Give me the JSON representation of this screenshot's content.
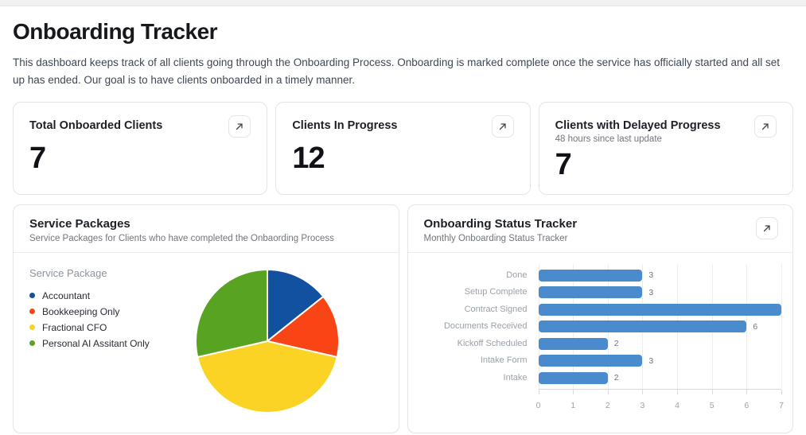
{
  "header": {
    "title": "Onboarding Tracker",
    "description": "This dashboard keeps track of all clients going through the Onboarding Process. Onboarding is marked complete once the service has officially started and all set up has ended. Our goal is to have clients onboarded in a timely manner."
  },
  "stats": [
    {
      "title": "Total Onboarded Clients",
      "value": "7"
    },
    {
      "title": "Clients In Progress",
      "value": "12"
    },
    {
      "title": "Clients with Delayed Progress",
      "subtitle": "48 hours since last update",
      "value": "7"
    }
  ],
  "icons": {
    "expand": "arrow-up-right"
  },
  "pie_card": {
    "title": "Service Packages",
    "subtitle": "Service Packages for Clients who have completed the Onbaording Process"
  },
  "bar_card": {
    "title": "Onboarding Status Tracker",
    "subtitle": "Monthly Onboarding Status Tracker"
  },
  "chart_data": [
    {
      "type": "pie",
      "title": "Service Packages",
      "legend_title": "Service Package",
      "legend_position": "left",
      "labels": [
        "Accountant",
        "Bookkeeping Only",
        "Fractional CFO",
        "Personal AI Assitant Only"
      ],
      "values": [
        1,
        1,
        3,
        2
      ],
      "colors": [
        "#11519f",
        "#f94416",
        "#fbd324",
        "#58a322"
      ],
      "start_angle_deg": 0,
      "direction": "clockwise"
    },
    {
      "type": "bar",
      "orientation": "horizontal",
      "title": "Onboarding Status Tracker",
      "categories": [
        "Done",
        "Setup Complete",
        "Contract Signed",
        "Documents Received",
        "Kickoff Scheduled",
        "Intake Form",
        "Intake"
      ],
      "values": [
        3,
        3,
        7,
        6,
        2,
        3,
        2
      ],
      "value_labels": [
        "3",
        "3",
        "",
        "6",
        "2",
        "3",
        "2"
      ],
      "bar_color": "#4a8bce",
      "xlabel": "",
      "ylabel": "",
      "xlim": [
        0,
        7
      ],
      "xticks": [
        0,
        1,
        2,
        3,
        4,
        5,
        6,
        7
      ],
      "grid": true
    }
  ]
}
